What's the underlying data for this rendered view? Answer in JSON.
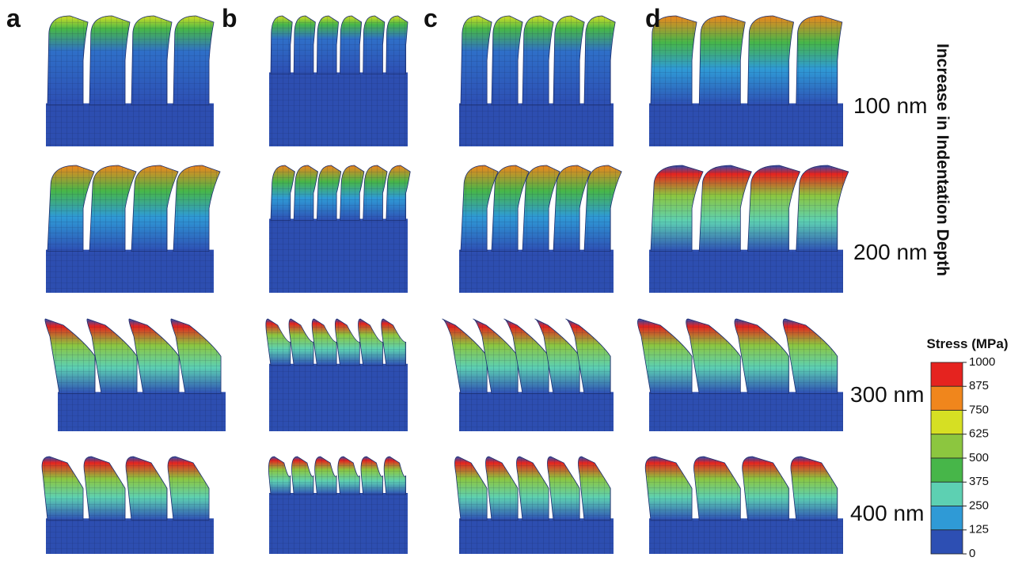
{
  "panels": [
    {
      "label": "a"
    },
    {
      "label": "b"
    },
    {
      "label": "c"
    },
    {
      "label": "d"
    }
  ],
  "depths": [
    "100 nm",
    "200 nm",
    "300 nm",
    "400 nm"
  ],
  "axis_label": "Increase in Indentation Depth",
  "colorbar": {
    "title": "Stress (MPa)",
    "ticks": [
      1000,
      875,
      750,
      625,
      500,
      375,
      250,
      125,
      0
    ],
    "colors": [
      "#e5231f",
      "#f0861c",
      "#d6df23",
      "#8cc63f",
      "#47b649",
      "#5dd0b2",
      "#2f9ad6",
      "#2d4fb3"
    ]
  }
}
